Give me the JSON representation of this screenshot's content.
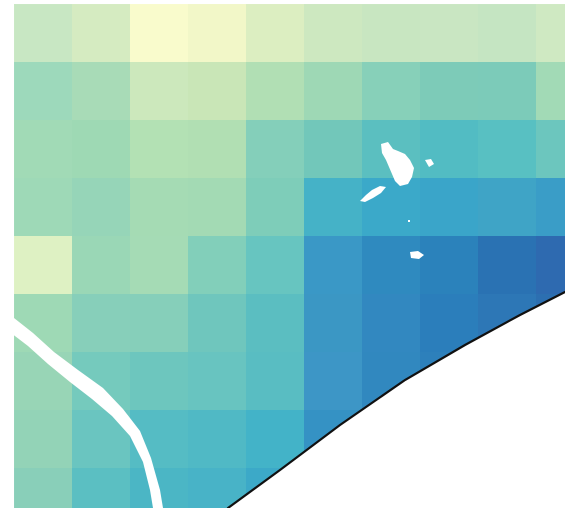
{
  "map": {
    "type": "gridded-raster",
    "labels_visible": false,
    "grid": {
      "rows": 9,
      "cols": 10
    },
    "palette": [
      "#ffffcc",
      "#edf8b1",
      "#c7e9b4",
      "#a6dba0",
      "#7fcdbb",
      "#41b6c4",
      "#1d91c0",
      "#225ea8"
    ],
    "cell_colors": [
      [
        "#c8e7c3",
        "#d5ebc1",
        "#f9fbcc",
        "#f2f7c8",
        "#dceec1",
        "#cde8c0",
        "#c8e6c1",
        "#c9e6c2",
        "#c5e5c2",
        "#cfe9c2"
      ],
      [
        "#9dd9bb",
        "#a8dbb7",
        "#cce8bc",
        "#c9e6b7",
        "#b1dfb4",
        "#9ed8b5",
        "#87d0b9",
        "#7dcbb8",
        "#7ccbb9",
        "#a2dab6"
      ],
      [
        "#a1dab6",
        "#9ed9b4",
        "#b3e1b4",
        "#b1dfb3",
        "#84cfba",
        "#72c7ba",
        "#5bbfc0",
        "#52bcc3",
        "#58c0c2",
        "#6cc6be"
      ],
      [
        "#9ed9b7",
        "#96d5b8",
        "#a5dbb4",
        "#a3dab4",
        "#7ecdb9",
        "#45b2c7",
        "#3ba9c9",
        "#3aa5c9",
        "#3fa4c6",
        "#3a9dc7"
      ],
      [
        "#def1c3",
        "#9ad7b6",
        "#a5dbb5",
        "#82cfba",
        "#67c5c0",
        "#3a98c6",
        "#2f8abf",
        "#2b82bb",
        "#2a72b3",
        "#2e6ab0"
      ],
      [
        "#9ed9b5",
        "#87cfba",
        "#86cfba",
        "#6fc6bd",
        "#5bbec1",
        "#3b97c4",
        "#3288c0",
        "#2b7ebb",
        "#2d77b6",
        "#2c6fb1"
      ],
      [
        "#98d5b6",
        "#75cabd",
        "#6dc6be",
        "#68c4c0",
        "#59bdc2",
        "#3d96c6",
        "#3188bf",
        "#2d80bb",
        "#2e78b6",
        "#ffffff"
      ],
      [
        "#93d3b7",
        "#6ac5c0",
        "#55bcc4",
        "#50b9c5",
        "#43b3c8",
        "#3592c4",
        "#2f86bf",
        "#ffffff",
        "#ffffff",
        "#ffffff"
      ],
      [
        "#89cfb9",
        "#5bbfc2",
        "#4bb6c5",
        "#48b3c7",
        "#3ca9c8",
        "#ffffff",
        "#ffffff",
        "#ffffff",
        "#ffffff",
        "#ffffff"
      ]
    ],
    "features": [
      {
        "name": "coastline",
        "kind": "coast-line",
        "color": "#111111"
      },
      {
        "name": "river",
        "kind": "river-gap",
        "color": "#ffffff"
      },
      {
        "name": "island-main",
        "kind": "island-gap",
        "color": "#ffffff"
      },
      {
        "name": "island-small-1",
        "kind": "island-gap",
        "color": "#ffffff"
      },
      {
        "name": "island-small-2",
        "kind": "island-gap",
        "color": "#ffffff"
      },
      {
        "name": "sea",
        "kind": "water-area",
        "color": "#ffffff"
      }
    ]
  }
}
